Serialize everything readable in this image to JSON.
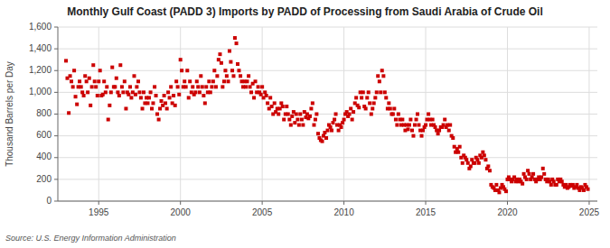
{
  "chart_data": {
    "type": "scatter",
    "title": "Monthly Gulf Coast (PADD 3) Imports by PADD of Processing from Saudi Arabia of Crude Oil",
    "ylabel": "Thousand Barrels per Day",
    "annotations": [
      "Source: U.S. Energy Information Administration"
    ],
    "color": "#cc0000",
    "marker": "square",
    "grid": true,
    "xlim": [
      1992.5,
      2025.5
    ],
    "ylim": [
      0,
      1600
    ],
    "xticks": [
      1995,
      2000,
      2005,
      2010,
      2015,
      2020,
      2025
    ],
    "yticks": [
      0,
      200,
      400,
      600,
      800,
      {
        "value": 1000,
        "label": "1,000"
      },
      {
        "value": 1200,
        "label": "1,200"
      },
      {
        "value": 1400,
        "label": "1,400"
      },
      {
        "value": 1600,
        "label": "1,600"
      }
    ],
    "x": [
      1993.0,
      1993.08,
      1993.17,
      1993.25,
      1993.33,
      1993.42,
      1993.5,
      1993.58,
      1993.67,
      1993.75,
      1993.83,
      1993.92,
      1994.0,
      1994.08,
      1994.17,
      1994.25,
      1994.33,
      1994.42,
      1994.5,
      1994.58,
      1994.67,
      1994.75,
      1994.83,
      1994.92,
      1995.0,
      1995.08,
      1995.17,
      1995.25,
      1995.33,
      1995.42,
      1995.5,
      1995.58,
      1995.67,
      1995.75,
      1995.83,
      1995.92,
      1996.0,
      1996.08,
      1996.17,
      1996.25,
      1996.33,
      1996.42,
      1996.5,
      1996.58,
      1996.67,
      1996.75,
      1996.83,
      1996.92,
      1997.0,
      1997.08,
      1997.17,
      1997.25,
      1997.33,
      1997.42,
      1997.5,
      1997.58,
      1997.67,
      1997.75,
      1997.83,
      1997.92,
      1998.0,
      1998.08,
      1998.17,
      1998.25,
      1998.33,
      1998.42,
      1998.5,
      1998.58,
      1998.67,
      1998.75,
      1998.83,
      1998.92,
      1999.0,
      1999.08,
      1999.17,
      1999.25,
      1999.33,
      1999.42,
      1999.5,
      1999.58,
      1999.67,
      1999.75,
      1999.83,
      1999.92,
      2000.0,
      2000.08,
      2000.17,
      2000.25,
      2000.33,
      2000.42,
      2000.5,
      2000.58,
      2000.67,
      2000.75,
      2000.83,
      2000.92,
      2001.0,
      2001.08,
      2001.17,
      2001.25,
      2001.33,
      2001.42,
      2001.5,
      2001.58,
      2001.67,
      2001.75,
      2001.83,
      2001.92,
      2002.0,
      2002.08,
      2002.17,
      2002.25,
      2002.33,
      2002.42,
      2002.5,
      2002.58,
      2002.67,
      2002.75,
      2002.83,
      2002.92,
      2003.0,
      2003.08,
      2003.17,
      2003.25,
      2003.33,
      2003.42,
      2003.5,
      2003.58,
      2003.67,
      2003.75,
      2003.83,
      2003.92,
      2004.0,
      2004.08,
      2004.17,
      2004.25,
      2004.33,
      2004.42,
      2004.5,
      2004.58,
      2004.67,
      2004.75,
      2004.83,
      2004.92,
      2005.0,
      2005.08,
      2005.17,
      2005.25,
      2005.33,
      2005.42,
      2005.5,
      2005.58,
      2005.67,
      2005.75,
      2005.83,
      2005.92,
      2006.0,
      2006.08,
      2006.17,
      2006.25,
      2006.33,
      2006.42,
      2006.5,
      2006.58,
      2006.67,
      2006.75,
      2006.83,
      2006.92,
      2007.0,
      2007.08,
      2007.17,
      2007.25,
      2007.33,
      2007.42,
      2007.5,
      2007.58,
      2007.67,
      2007.75,
      2007.83,
      2007.92,
      2008.0,
      2008.08,
      2008.17,
      2008.25,
      2008.33,
      2008.42,
      2008.5,
      2008.58,
      2008.67,
      2008.75,
      2008.83,
      2008.92,
      2009.0,
      2009.08,
      2009.17,
      2009.25,
      2009.33,
      2009.42,
      2009.5,
      2009.58,
      2009.67,
      2009.75,
      2009.83,
      2009.92,
      2010.0,
      2010.08,
      2010.17,
      2010.25,
      2010.33,
      2010.42,
      2010.5,
      2010.58,
      2010.67,
      2010.75,
      2010.83,
      2010.92,
      2011.0,
      2011.08,
      2011.17,
      2011.25,
      2011.33,
      2011.42,
      2011.5,
      2011.58,
      2011.67,
      2011.75,
      2011.83,
      2011.92,
      2012.0,
      2012.08,
      2012.17,
      2012.25,
      2012.33,
      2012.42,
      2012.5,
      2012.58,
      2012.67,
      2012.75,
      2012.83,
      2012.92,
      2013.0,
      2013.08,
      2013.17,
      2013.25,
      2013.33,
      2013.42,
      2013.5,
      2013.58,
      2013.67,
      2013.75,
      2013.83,
      2013.92,
      2014.0,
      2014.08,
      2014.17,
      2014.25,
      2014.33,
      2014.42,
      2014.5,
      2014.58,
      2014.67,
      2014.75,
      2014.83,
      2014.92,
      2015.0,
      2015.08,
      2015.17,
      2015.25,
      2015.33,
      2015.42,
      2015.5,
      2015.58,
      2015.67,
      2015.75,
      2015.83,
      2015.92,
      2016.0,
      2016.08,
      2016.17,
      2016.25,
      2016.33,
      2016.42,
      2016.5,
      2016.58,
      2016.67,
      2016.75,
      2016.83,
      2016.92,
      2017.0,
      2017.08,
      2017.17,
      2017.25,
      2017.33,
      2017.42,
      2017.5,
      2017.58,
      2017.67,
      2017.75,
      2017.83,
      2017.92,
      2018.0,
      2018.08,
      2018.17,
      2018.25,
      2018.33,
      2018.42,
      2018.5,
      2018.58,
      2018.67,
      2018.75,
      2018.83,
      2018.92,
      2019.0,
      2019.08,
      2019.17,
      2019.25,
      2019.33,
      2019.42,
      2019.5,
      2019.58,
      2019.67,
      2019.75,
      2019.83,
      2019.92,
      2020.0,
      2020.08,
      2020.17,
      2020.25,
      2020.33,
      2020.42,
      2020.5,
      2020.58,
      2020.67,
      2020.75,
      2020.83,
      2020.92,
      2021.0,
      2021.08,
      2021.17,
      2021.25,
      2021.33,
      2021.42,
      2021.5,
      2021.58,
      2021.67,
      2021.75,
      2021.83,
      2021.92,
      2022.0,
      2022.08,
      2022.17,
      2022.25,
      2022.33,
      2022.42,
      2022.5,
      2022.58,
      2022.67,
      2022.75,
      2022.83,
      2022.92,
      2023.0,
      2023.08,
      2023.17,
      2023.25,
      2023.33,
      2023.42,
      2023.5,
      2023.58,
      2023.67,
      2023.75,
      2023.83,
      2023.92,
      2024.0,
      2024.08,
      2024.17,
      2024.25,
      2024.33,
      2024.42,
      2024.5,
      2024.58,
      2024.67,
      2024.75,
      2024.83,
      2024.92
    ],
    "values": [
      1290,
      1130,
      810,
      1150,
      1100,
      1050,
      1200,
      960,
      890,
      1050,
      1100,
      1050,
      1000,
      970,
      1150,
      1100,
      1000,
      1130,
      880,
      1050,
      1250,
      1100,
      1050,
      970,
      1100,
      1200,
      970,
      980,
      1100,
      1000,
      1050,
      750,
      880,
      1000,
      1230,
      1050,
      1050,
      1130,
      1000,
      970,
      1250,
      1050,
      1000,
      1100,
      850,
      1000,
      980,
      1050,
      950,
      1000,
      1150,
      980,
      1050,
      1100,
      1000,
      950,
      850,
      1000,
      900,
      950,
      900,
      950,
      1000,
      850,
      900,
      1050,
      970,
      800,
      750,
      850,
      920,
      880,
      970,
      900,
      850,
      1000,
      950,
      1050,
      900,
      970,
      880,
      1100,
      1050,
      980,
      1300,
      1200,
      1050,
      1100,
      1050,
      1200,
      950,
      1100,
      1000,
      1050,
      980,
      1000,
      1100,
      1050,
      1000,
      1150,
      1050,
      970,
      900,
      1050,
      1000,
      1100,
      1000,
      1050,
      1100,
      1200,
      1050,
      1150,
      1300,
      1350,
      1270,
      1050,
      1100,
      1200,
      1150,
      1100,
      1380,
      1280,
      1200,
      1150,
      1500,
      1450,
      1260,
      1200,
      1150,
      1100,
      1050,
      1100,
      1050,
      1100,
      1150,
      1050,
      1000,
      1080,
      950,
      1100,
      1000,
      1050,
      1000,
      980,
      1050,
      950,
      1000,
      970,
      900,
      850,
      950,
      870,
      800,
      900,
      820,
      850,
      800,
      850,
      900,
      870,
      750,
      800,
      870,
      800,
      750,
      700,
      780,
      820,
      720,
      800,
      750,
      700,
      800,
      750,
      700,
      820,
      770,
      800,
      760,
      780,
      850,
      900,
      700,
      750,
      800,
      620,
      580,
      560,
      550,
      600,
      630,
      580,
      650,
      700,
      680,
      650,
      720,
      750,
      800,
      700,
      650,
      700,
      680,
      720,
      750,
      800,
      820,
      780,
      800,
      850,
      750,
      820,
      900,
      950,
      880,
      860,
      1000,
      950,
      1000,
      870,
      850,
      950,
      1000,
      900,
      800,
      850,
      900,
      950,
      1000,
      1150,
      1100,
      1000,
      1200,
      1150,
      1000,
      950,
      850,
      900,
      850,
      800,
      800,
      850,
      750,
      700,
      800,
      750,
      700,
      750,
      700,
      650,
      700,
      660,
      700,
      750,
      650,
      600,
      700,
      750,
      800,
      700,
      650,
      600,
      650,
      680,
      700,
      750,
      800,
      750,
      700,
      750,
      700,
      680,
      650,
      620,
      650,
      680,
      680,
      700,
      750,
      680,
      700,
      650,
      700,
      600,
      580,
      500,
      450,
      480,
      450,
      500,
      400,
      350,
      420,
      400,
      380,
      350,
      300,
      320,
      380,
      350,
      350,
      400,
      380,
      350,
      420,
      400,
      450,
      420,
      380,
      300,
      320,
      280,
      150,
      130,
      120,
      100,
      150,
      100,
      80,
      120,
      150,
      130,
      110,
      90,
      200,
      220,
      200,
      180,
      200,
      220,
      180,
      200,
      180,
      200,
      180,
      160,
      250,
      220,
      200,
      280,
      250,
      200,
      220,
      250,
      200,
      180,
      200,
      220,
      200,
      220,
      300,
      250,
      200,
      180,
      200,
      180,
      150,
      200,
      180,
      150,
      150,
      200,
      180,
      200,
      180,
      150,
      130,
      150,
      120,
      130,
      150,
      140,
      150,
      120,
      130,
      150,
      120,
      100,
      130,
      120,
      100,
      150,
      130,
      110
    ]
  }
}
